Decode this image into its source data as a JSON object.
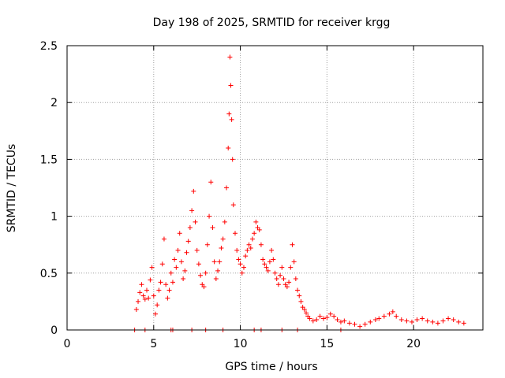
{
  "chart_data": {
    "type": "scatter",
    "title": "Day 198 of 2025, SRMTID for receiver krgg",
    "xlabel": "GPS time / hours",
    "ylabel": "SRMTID / TECUs",
    "xlim": [
      0,
      24
    ],
    "ylim": [
      0,
      2.5
    ],
    "grid": true,
    "marker": "+",
    "xticks": [
      0,
      5,
      10,
      15,
      20
    ],
    "yticks": [
      0,
      0.5,
      1,
      1.5,
      2,
      2.5
    ],
    "xtick_labels": [
      "0",
      "5",
      "10",
      "15",
      "20"
    ],
    "ytick_labels": [
      "0",
      "0.5",
      "1",
      "1.5",
      "2",
      "2.5"
    ],
    "colors": {
      "series": "#ff0000"
    },
    "series": [
      {
        "name": "SRMTID",
        "points": [
          [
            4.0,
            0.18
          ],
          [
            4.1,
            0.25
          ],
          [
            4.2,
            0.33
          ],
          [
            4.3,
            0.4
          ],
          [
            4.4,
            0.3
          ],
          [
            4.5,
            0.27
          ],
          [
            4.6,
            0.35
          ],
          [
            4.7,
            0.28
          ],
          [
            4.8,
            0.44
          ],
          [
            4.9,
            0.55
          ],
          [
            5.0,
            0.3
          ],
          [
            5.1,
            0.14
          ],
          [
            5.2,
            0.22
          ],
          [
            5.3,
            0.35
          ],
          [
            5.4,
            0.42
          ],
          [
            5.5,
            0.58
          ],
          [
            5.6,
            0.8
          ],
          [
            5.7,
            0.4
          ],
          [
            5.8,
            0.28
          ],
          [
            5.9,
            0.35
          ],
          [
            6.0,
            0.5
          ],
          [
            6.1,
            0.42
          ],
          [
            6.2,
            0.62
          ],
          [
            6.3,
            0.55
          ],
          [
            6.4,
            0.7
          ],
          [
            6.5,
            0.85
          ],
          [
            6.6,
            0.6
          ],
          [
            6.7,
            0.45
          ],
          [
            6.8,
            0.52
          ],
          [
            6.9,
            0.68
          ],
          [
            7.0,
            0.78
          ],
          [
            7.1,
            0.9
          ],
          [
            7.2,
            1.05
          ],
          [
            7.3,
            1.22
          ],
          [
            7.4,
            0.95
          ],
          [
            7.5,
            0.7
          ],
          [
            7.6,
            0.58
          ],
          [
            7.7,
            0.48
          ],
          [
            7.8,
            0.4
          ],
          [
            7.9,
            0.38
          ],
          [
            8.0,
            0.5
          ],
          [
            8.1,
            0.75
          ],
          [
            8.2,
            1.0
          ],
          [
            8.3,
            1.3
          ],
          [
            8.4,
            0.9
          ],
          [
            8.5,
            0.6
          ],
          [
            8.6,
            0.45
          ],
          [
            8.7,
            0.52
          ],
          [
            8.8,
            0.6
          ],
          [
            8.9,
            0.72
          ],
          [
            9.0,
            0.8
          ],
          [
            9.1,
            0.95
          ],
          [
            9.2,
            1.25
          ],
          [
            9.3,
            1.6
          ],
          [
            9.35,
            1.9
          ],
          [
            9.4,
            2.4
          ],
          [
            9.45,
            2.15
          ],
          [
            9.5,
            1.85
          ],
          [
            9.55,
            1.5
          ],
          [
            9.6,
            1.1
          ],
          [
            9.7,
            0.85
          ],
          [
            9.8,
            0.7
          ],
          [
            9.9,
            0.62
          ],
          [
            10.0,
            0.58
          ],
          [
            10.1,
            0.5
          ],
          [
            10.2,
            0.55
          ],
          [
            10.3,
            0.65
          ],
          [
            10.4,
            0.7
          ],
          [
            10.5,
            0.75
          ],
          [
            10.6,
            0.72
          ],
          [
            10.7,
            0.8
          ],
          [
            10.8,
            0.85
          ],
          [
            10.9,
            0.95
          ],
          [
            11.0,
            0.9
          ],
          [
            11.1,
            0.88
          ],
          [
            11.2,
            0.75
          ],
          [
            11.3,
            0.62
          ],
          [
            11.4,
            0.58
          ],
          [
            11.5,
            0.55
          ],
          [
            11.6,
            0.52
          ],
          [
            11.7,
            0.6
          ],
          [
            11.8,
            0.7
          ],
          [
            11.9,
            0.62
          ],
          [
            12.0,
            0.5
          ],
          [
            12.1,
            0.45
          ],
          [
            12.2,
            0.4
          ],
          [
            12.3,
            0.48
          ],
          [
            12.4,
            0.55
          ],
          [
            12.5,
            0.45
          ],
          [
            12.6,
            0.4
          ],
          [
            12.7,
            0.38
          ],
          [
            12.8,
            0.42
          ],
          [
            12.9,
            0.55
          ],
          [
            13.0,
            0.75
          ],
          [
            13.1,
            0.6
          ],
          [
            13.2,
            0.45
          ],
          [
            13.3,
            0.35
          ],
          [
            13.4,
            0.3
          ],
          [
            13.5,
            0.25
          ],
          [
            13.6,
            0.2
          ],
          [
            13.7,
            0.18
          ],
          [
            13.8,
            0.15
          ],
          [
            13.9,
            0.12
          ],
          [
            14.0,
            0.1
          ],
          [
            14.2,
            0.08
          ],
          [
            14.4,
            0.09
          ],
          [
            14.6,
            0.12
          ],
          [
            14.8,
            0.1
          ],
          [
            15.0,
            0.11
          ],
          [
            15.2,
            0.14
          ],
          [
            15.4,
            0.12
          ],
          [
            15.6,
            0.09
          ],
          [
            15.8,
            0.07
          ],
          [
            16.0,
            0.08
          ],
          [
            16.3,
            0.06
          ],
          [
            16.6,
            0.05
          ],
          [
            16.9,
            0.03
          ],
          [
            17.2,
            0.05
          ],
          [
            17.5,
            0.07
          ],
          [
            17.8,
            0.09
          ],
          [
            18.0,
            0.1
          ],
          [
            18.3,
            0.12
          ],
          [
            18.6,
            0.14
          ],
          [
            18.8,
            0.16
          ],
          [
            19.0,
            0.12
          ],
          [
            19.3,
            0.09
          ],
          [
            19.6,
            0.08
          ],
          [
            19.9,
            0.07
          ],
          [
            20.2,
            0.09
          ],
          [
            20.5,
            0.1
          ],
          [
            20.8,
            0.08
          ],
          [
            21.1,
            0.07
          ],
          [
            21.4,
            0.06
          ],
          [
            21.7,
            0.08
          ],
          [
            22.0,
            0.1
          ],
          [
            22.3,
            0.09
          ],
          [
            22.6,
            0.07
          ],
          [
            22.9,
            0.06
          ]
        ]
      }
    ],
    "baseline_points_x": [
      3.9,
      4.5,
      6.0,
      6.1,
      7.2,
      8.0,
      9.0,
      10.8,
      11.2,
      12.4,
      13.3,
      15.8
    ]
  }
}
